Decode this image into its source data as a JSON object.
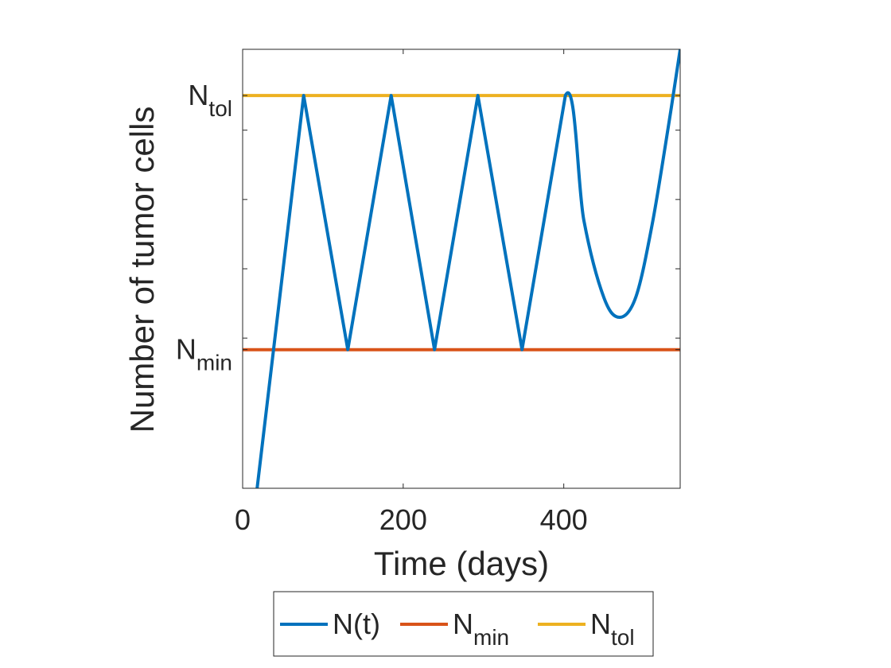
{
  "chart_data": {
    "type": "line",
    "xlabel": "Time (days)",
    "ylabel": "Number of tumor cells",
    "xlim": [
      0,
      545
    ],
    "xticks": [
      0,
      200,
      400
    ],
    "ylim": [
      0.93,
      1.12
    ],
    "y_ticks": [
      {
        "value": 0.99,
        "base": "N",
        "sub": "min"
      },
      {
        "value": 1.1,
        "base": "N",
        "sub": "tol"
      }
    ],
    "series": [
      {
        "name": "N(t)",
        "base": "N",
        "sub": "(t)",
        "color": "#0072BD",
        "x": [
          18,
          76,
          131,
          185,
          239,
          293,
          348,
          402,
          425,
          450,
          470,
          490,
          510,
          530,
          545
        ],
        "y": [
          0.93,
          1.1,
          0.99,
          1.1,
          0.99,
          1.1,
          0.99,
          1.1,
          1.046,
          1.0125,
          1.004,
          1.013,
          1.044,
          1.086,
          1.12
        ]
      },
      {
        "name": "N_min",
        "base": "N",
        "sub": "min",
        "color": "#D95319",
        "x": [
          0,
          545
        ],
        "y": [
          0.99,
          0.99
        ]
      },
      {
        "name": "N_tol",
        "base": "N",
        "sub": "tol",
        "color": "#EDB120",
        "x": [
          0,
          545
        ],
        "y": [
          1.1,
          1.1
        ]
      }
    ],
    "legend": "bottom-outside",
    "grid": false
  }
}
